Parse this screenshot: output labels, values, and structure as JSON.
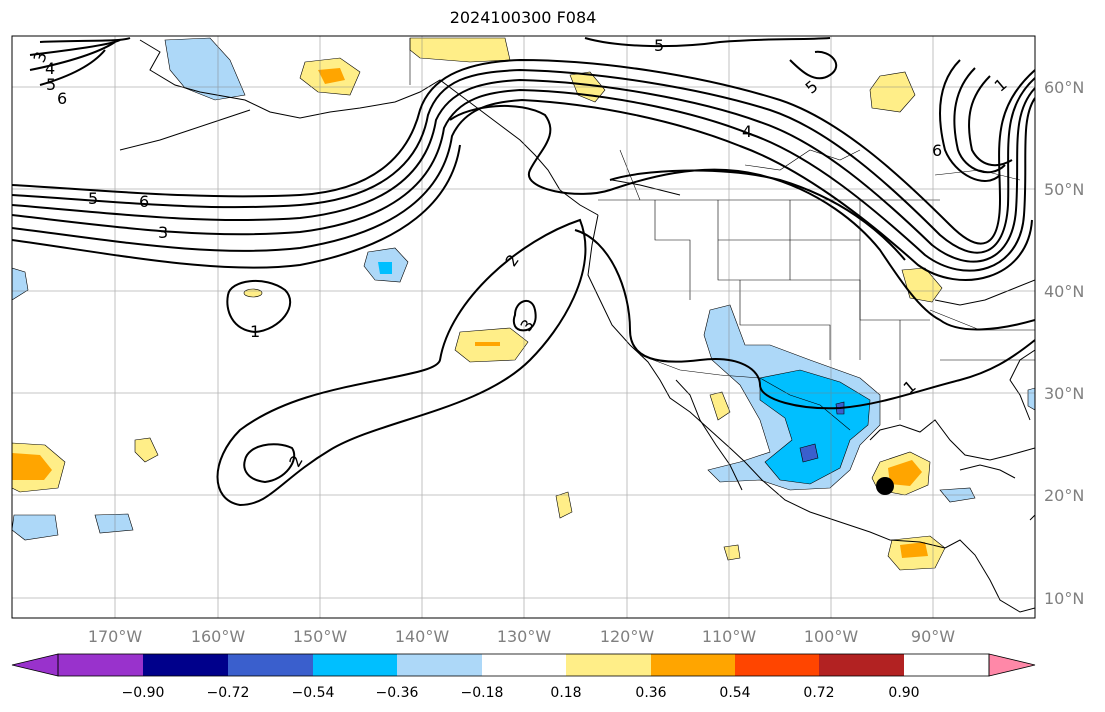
{
  "title": "2024100300 F084",
  "map": {
    "lon_labels": [
      "170°W",
      "160°W",
      "150°W",
      "140°W",
      "130°W",
      "120°W",
      "110°W",
      "100°W",
      "90°W"
    ],
    "lat_labels": [
      "60°N",
      "50°N",
      "40°N",
      "30°N",
      "20°N",
      "10°N"
    ],
    "contour_labels": [
      "3",
      "4",
      "5",
      "6",
      "5",
      "6",
      "3",
      "1",
      "2",
      "3",
      "2",
      "5",
      "5",
      "4",
      "6",
      "1",
      "1"
    ],
    "colors": {
      "light_yellow": "#ffee88",
      "orange": "#ffa500",
      "light_blue": "#add8f8",
      "deep_sky_blue": "#00bfff",
      "royal_blue": "#3a5fcd"
    }
  },
  "colorbar": {
    "colors": [
      "#9932cc",
      "#00008b",
      "#3a5fcd",
      "#00bfff",
      "#add8f8",
      "#ffffff",
      "#ffee88",
      "#ffa500",
      "#ff4500",
      "#b22222",
      "#ff88a8"
    ],
    "ticks": [
      "−0.90",
      "−0.72",
      "−0.54",
      "−0.36",
      "−0.18",
      "0.18",
      "0.36",
      "0.54",
      "0.72",
      "0.90"
    ]
  }
}
